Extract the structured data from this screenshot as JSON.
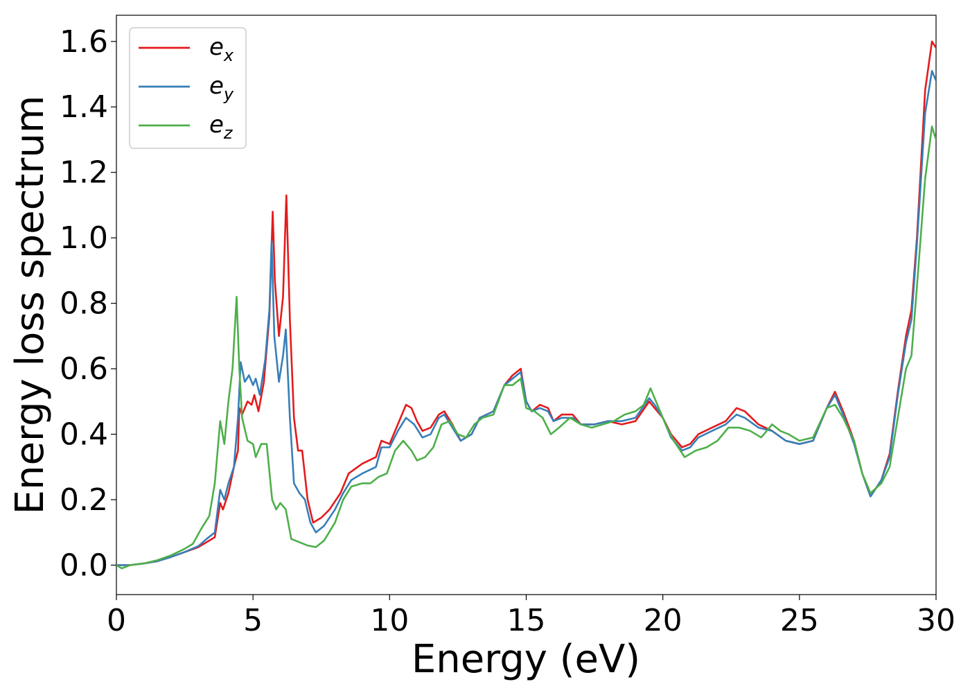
{
  "chart_data": {
    "type": "line",
    "xlabel": "Energy (eV)",
    "ylabel": "Energy loss spectrum",
    "xlim": [
      0,
      30
    ],
    "ylim": [
      -0.09,
      1.68
    ],
    "xticks": [
      0,
      5,
      10,
      15,
      20,
      25,
      30
    ],
    "yticks": [
      0.0,
      0.2,
      0.4,
      0.6,
      0.8,
      1.0,
      1.2,
      1.4,
      1.6
    ],
    "legend_position": "top-left",
    "grid": false,
    "series": [
      {
        "name": "e",
        "subscript": "x",
        "color": "#e41a1c",
        "points": [
          [
            0,
            0.0
          ],
          [
            0.5,
            0.0
          ],
          [
            1,
            0.005
          ],
          [
            1.5,
            0.012
          ],
          [
            2,
            0.025
          ],
          [
            2.5,
            0.04
          ],
          [
            3,
            0.055
          ],
          [
            3.3,
            0.07
          ],
          [
            3.6,
            0.085
          ],
          [
            3.8,
            0.19
          ],
          [
            3.9,
            0.17
          ],
          [
            4.1,
            0.22
          ],
          [
            4.3,
            0.3
          ],
          [
            4.45,
            0.35
          ],
          [
            4.5,
            0.48
          ],
          [
            4.6,
            0.46
          ],
          [
            4.8,
            0.5
          ],
          [
            4.95,
            0.49
          ],
          [
            5.05,
            0.52
          ],
          [
            5.2,
            0.47
          ],
          [
            5.4,
            0.56
          ],
          [
            5.6,
            0.76
          ],
          [
            5.72,
            1.08
          ],
          [
            5.8,
            0.87
          ],
          [
            5.95,
            0.7
          ],
          [
            6.1,
            0.82
          ],
          [
            6.22,
            1.13
          ],
          [
            6.35,
            0.75
          ],
          [
            6.5,
            0.45
          ],
          [
            6.65,
            0.35
          ],
          [
            6.8,
            0.35
          ],
          [
            7.0,
            0.2
          ],
          [
            7.2,
            0.13
          ],
          [
            7.5,
            0.145
          ],
          [
            7.8,
            0.17
          ],
          [
            8.2,
            0.22
          ],
          [
            8.5,
            0.28
          ],
          [
            9.0,
            0.31
          ],
          [
            9.5,
            0.33
          ],
          [
            9.7,
            0.38
          ],
          [
            10.0,
            0.37
          ],
          [
            10.3,
            0.43
          ],
          [
            10.6,
            0.49
          ],
          [
            10.8,
            0.48
          ],
          [
            11.0,
            0.44
          ],
          [
            11.2,
            0.41
          ],
          [
            11.5,
            0.42
          ],
          [
            11.8,
            0.46
          ],
          [
            12.0,
            0.47
          ],
          [
            12.3,
            0.43
          ],
          [
            12.6,
            0.38
          ],
          [
            13.0,
            0.4
          ],
          [
            13.3,
            0.45
          ],
          [
            13.8,
            0.47
          ],
          [
            14.2,
            0.55
          ],
          [
            14.5,
            0.58
          ],
          [
            14.8,
            0.6
          ],
          [
            15.0,
            0.5
          ],
          [
            15.2,
            0.47
          ],
          [
            15.5,
            0.49
          ],
          [
            15.8,
            0.48
          ],
          [
            16.0,
            0.44
          ],
          [
            16.3,
            0.46
          ],
          [
            16.7,
            0.46
          ],
          [
            17.0,
            0.43
          ],
          [
            17.5,
            0.43
          ],
          [
            18.0,
            0.44
          ],
          [
            18.5,
            0.43
          ],
          [
            19.0,
            0.44
          ],
          [
            19.5,
            0.5
          ],
          [
            19.7,
            0.48
          ],
          [
            20.0,
            0.45
          ],
          [
            20.3,
            0.4
          ],
          [
            20.7,
            0.36
          ],
          [
            21.0,
            0.37
          ],
          [
            21.3,
            0.4
          ],
          [
            21.8,
            0.42
          ],
          [
            22.3,
            0.44
          ],
          [
            22.7,
            0.48
          ],
          [
            23.0,
            0.47
          ],
          [
            23.5,
            0.43
          ],
          [
            24.0,
            0.41
          ],
          [
            24.5,
            0.38
          ],
          [
            25.0,
            0.37
          ],
          [
            25.5,
            0.38
          ],
          [
            26.0,
            0.48
          ],
          [
            26.3,
            0.53
          ],
          [
            26.6,
            0.47
          ],
          [
            27.0,
            0.38
          ],
          [
            27.3,
            0.28
          ],
          [
            27.6,
            0.21
          ],
          [
            28.0,
            0.26
          ],
          [
            28.3,
            0.34
          ],
          [
            28.6,
            0.53
          ],
          [
            28.9,
            0.7
          ],
          [
            29.1,
            0.78
          ],
          [
            29.3,
            1.0
          ],
          [
            29.6,
            1.45
          ],
          [
            29.85,
            1.6
          ],
          [
            30.0,
            1.58
          ]
        ]
      },
      {
        "name": "e",
        "subscript": "y",
        "color": "#377eb8",
        "points": [
          [
            0,
            0.0
          ],
          [
            0.5,
            0.0
          ],
          [
            1,
            0.005
          ],
          [
            1.5,
            0.012
          ],
          [
            2,
            0.025
          ],
          [
            2.5,
            0.04
          ],
          [
            3,
            0.058
          ],
          [
            3.3,
            0.08
          ],
          [
            3.6,
            0.1
          ],
          [
            3.8,
            0.23
          ],
          [
            3.95,
            0.2
          ],
          [
            4.1,
            0.25
          ],
          [
            4.3,
            0.3
          ],
          [
            4.45,
            0.45
          ],
          [
            4.55,
            0.62
          ],
          [
            4.7,
            0.56
          ],
          [
            4.85,
            0.58
          ],
          [
            5.0,
            0.55
          ],
          [
            5.1,
            0.57
          ],
          [
            5.25,
            0.52
          ],
          [
            5.45,
            0.63
          ],
          [
            5.6,
            0.78
          ],
          [
            5.68,
            0.99
          ],
          [
            5.78,
            0.7
          ],
          [
            5.95,
            0.56
          ],
          [
            6.1,
            0.64
          ],
          [
            6.2,
            0.72
          ],
          [
            6.35,
            0.45
          ],
          [
            6.5,
            0.25
          ],
          [
            6.7,
            0.22
          ],
          [
            6.9,
            0.2
          ],
          [
            7.1,
            0.13
          ],
          [
            7.3,
            0.1
          ],
          [
            7.6,
            0.12
          ],
          [
            8.0,
            0.17
          ],
          [
            8.3,
            0.22
          ],
          [
            8.6,
            0.26
          ],
          [
            9.0,
            0.28
          ],
          [
            9.5,
            0.3
          ],
          [
            9.7,
            0.36
          ],
          [
            10.0,
            0.36
          ],
          [
            10.3,
            0.41
          ],
          [
            10.6,
            0.45
          ],
          [
            10.9,
            0.43
          ],
          [
            11.2,
            0.39
          ],
          [
            11.5,
            0.4
          ],
          [
            11.8,
            0.45
          ],
          [
            12.0,
            0.46
          ],
          [
            12.3,
            0.42
          ],
          [
            12.6,
            0.38
          ],
          [
            13.0,
            0.4
          ],
          [
            13.3,
            0.45
          ],
          [
            13.8,
            0.47
          ],
          [
            14.2,
            0.55
          ],
          [
            14.5,
            0.57
          ],
          [
            14.8,
            0.59
          ],
          [
            15.0,
            0.5
          ],
          [
            15.2,
            0.47
          ],
          [
            15.5,
            0.48
          ],
          [
            15.8,
            0.47
          ],
          [
            16.0,
            0.44
          ],
          [
            16.3,
            0.45
          ],
          [
            16.7,
            0.45
          ],
          [
            17.0,
            0.43
          ],
          [
            17.5,
            0.43
          ],
          [
            18.0,
            0.44
          ],
          [
            18.5,
            0.44
          ],
          [
            19.0,
            0.45
          ],
          [
            19.5,
            0.51
          ],
          [
            19.7,
            0.49
          ],
          [
            20.0,
            0.45
          ],
          [
            20.3,
            0.39
          ],
          [
            20.7,
            0.35
          ],
          [
            21.0,
            0.36
          ],
          [
            21.3,
            0.39
          ],
          [
            21.8,
            0.41
          ],
          [
            22.3,
            0.43
          ],
          [
            22.7,
            0.46
          ],
          [
            23.0,
            0.45
          ],
          [
            23.5,
            0.42
          ],
          [
            24.0,
            0.41
          ],
          [
            24.5,
            0.38
          ],
          [
            25.0,
            0.37
          ],
          [
            25.5,
            0.38
          ],
          [
            26.0,
            0.48
          ],
          [
            26.3,
            0.52
          ],
          [
            26.6,
            0.46
          ],
          [
            27.0,
            0.37
          ],
          [
            27.3,
            0.28
          ],
          [
            27.6,
            0.21
          ],
          [
            28.0,
            0.26
          ],
          [
            28.3,
            0.33
          ],
          [
            28.6,
            0.52
          ],
          [
            28.9,
            0.68
          ],
          [
            29.1,
            0.75
          ],
          [
            29.3,
            0.98
          ],
          [
            29.6,
            1.38
          ],
          [
            29.85,
            1.51
          ],
          [
            30.0,
            1.48
          ]
        ]
      },
      {
        "name": "e",
        "subscript": "z",
        "color": "#4daf4a",
        "points": [
          [
            0,
            0.0
          ],
          [
            0.2,
            -0.01
          ],
          [
            0.5,
            0.0
          ],
          [
            1,
            0.005
          ],
          [
            1.5,
            0.015
          ],
          [
            2,
            0.03
          ],
          [
            2.5,
            0.05
          ],
          [
            2.8,
            0.065
          ],
          [
            3.1,
            0.11
          ],
          [
            3.4,
            0.15
          ],
          [
            3.6,
            0.25
          ],
          [
            3.8,
            0.44
          ],
          [
            3.95,
            0.37
          ],
          [
            4.1,
            0.5
          ],
          [
            4.25,
            0.6
          ],
          [
            4.4,
            0.82
          ],
          [
            4.5,
            0.6
          ],
          [
            4.6,
            0.45
          ],
          [
            4.8,
            0.38
          ],
          [
            5.0,
            0.37
          ],
          [
            5.1,
            0.33
          ],
          [
            5.3,
            0.37
          ],
          [
            5.5,
            0.37
          ],
          [
            5.7,
            0.2
          ],
          [
            5.85,
            0.17
          ],
          [
            6.0,
            0.19
          ],
          [
            6.2,
            0.17
          ],
          [
            6.4,
            0.08
          ],
          [
            6.7,
            0.07
          ],
          [
            7.0,
            0.06
          ],
          [
            7.3,
            0.055
          ],
          [
            7.6,
            0.075
          ],
          [
            8.0,
            0.13
          ],
          [
            8.3,
            0.2
          ],
          [
            8.6,
            0.24
          ],
          [
            9.0,
            0.25
          ],
          [
            9.3,
            0.25
          ],
          [
            9.6,
            0.27
          ],
          [
            9.9,
            0.28
          ],
          [
            10.2,
            0.35
          ],
          [
            10.5,
            0.38
          ],
          [
            10.8,
            0.35
          ],
          [
            11.0,
            0.32
          ],
          [
            11.3,
            0.33
          ],
          [
            11.6,
            0.36
          ],
          [
            11.9,
            0.43
          ],
          [
            12.2,
            0.44
          ],
          [
            12.5,
            0.4
          ],
          [
            12.8,
            0.39
          ],
          [
            13.1,
            0.43
          ],
          [
            13.4,
            0.45
          ],
          [
            13.8,
            0.46
          ],
          [
            14.2,
            0.55
          ],
          [
            14.5,
            0.55
          ],
          [
            14.8,
            0.57
          ],
          [
            15.0,
            0.48
          ],
          [
            15.3,
            0.47
          ],
          [
            15.6,
            0.45
          ],
          [
            15.9,
            0.4
          ],
          [
            16.2,
            0.42
          ],
          [
            16.6,
            0.45
          ],
          [
            17.0,
            0.43
          ],
          [
            17.4,
            0.42
          ],
          [
            17.8,
            0.43
          ],
          [
            18.2,
            0.44
          ],
          [
            18.6,
            0.46
          ],
          [
            19.0,
            0.47
          ],
          [
            19.3,
            0.49
          ],
          [
            19.55,
            0.54
          ],
          [
            19.8,
            0.49
          ],
          [
            20.1,
            0.43
          ],
          [
            20.4,
            0.38
          ],
          [
            20.8,
            0.33
          ],
          [
            21.2,
            0.35
          ],
          [
            21.6,
            0.36
          ],
          [
            22.0,
            0.38
          ],
          [
            22.4,
            0.42
          ],
          [
            22.8,
            0.42
          ],
          [
            23.2,
            0.41
          ],
          [
            23.6,
            0.39
          ],
          [
            24.0,
            0.43
          ],
          [
            24.3,
            0.41
          ],
          [
            24.6,
            0.4
          ],
          [
            25.0,
            0.38
          ],
          [
            25.5,
            0.39
          ],
          [
            26.0,
            0.48
          ],
          [
            26.3,
            0.49
          ],
          [
            26.6,
            0.45
          ],
          [
            27.0,
            0.38
          ],
          [
            27.3,
            0.28
          ],
          [
            27.6,
            0.22
          ],
          [
            28.0,
            0.25
          ],
          [
            28.3,
            0.3
          ],
          [
            28.6,
            0.45
          ],
          [
            28.9,
            0.6
          ],
          [
            29.1,
            0.64
          ],
          [
            29.3,
            0.85
          ],
          [
            29.6,
            1.18
          ],
          [
            29.85,
            1.34
          ],
          [
            30.0,
            1.3
          ]
        ]
      }
    ]
  }
}
